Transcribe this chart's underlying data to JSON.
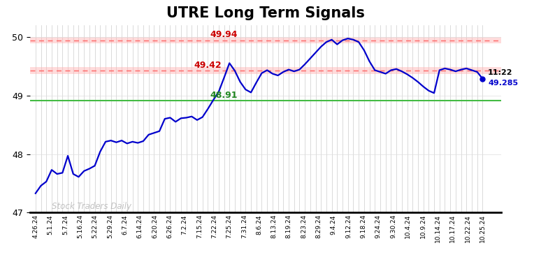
{
  "title": "UTRE Long Term Signals",
  "title_fontsize": 15,
  "title_fontweight": "bold",
  "ylim": [
    47.0,
    50.2
  ],
  "yticks": [
    47,
    48,
    49,
    50
  ],
  "background_color": "#ffffff",
  "plot_bg_color": "#ffffff",
  "line_color": "#0000cc",
  "line_width": 1.6,
  "hline_red1": 49.94,
  "hline_red2": 49.42,
  "hline_green": 48.91,
  "pink_band1_lo": 49.89,
  "pink_band1_hi": 49.995,
  "pink_band2_lo": 49.36,
  "pink_band2_hi": 49.48,
  "annotation_49_94": "49.94",
  "annotation_49_42": "49.42",
  "annotation_48_91": "48.91",
  "annotation_time": "11:22",
  "annotation_price": "49.285",
  "watermark": "Stock Traders Daily",
  "x_labels": [
    "4.26.24",
    "5.1.24",
    "5.7.24",
    "5.16.24",
    "5.22.24",
    "5.29.24",
    "6.7.24",
    "6.14.24",
    "6.20.24",
    "6.26.24",
    "7.2.24",
    "7.15.24",
    "7.22.24",
    "7.25.24",
    "7.31.24",
    "8.6.24",
    "8.13.24",
    "8.19.24",
    "8.23.24",
    "8.29.24",
    "9.4.24",
    "9.12.24",
    "9.18.24",
    "9.24.24",
    "9.30.24",
    "10.4.24",
    "10.9.24",
    "10.14.24",
    "10.17.24",
    "10.22.24",
    "10.25.24"
  ],
  "price_data": [
    [
      0,
      47.33
    ],
    [
      1,
      47.46
    ],
    [
      2,
      47.53
    ],
    [
      3,
      47.73
    ],
    [
      4,
      47.66
    ],
    [
      5,
      47.68
    ],
    [
      6,
      47.97
    ],
    [
      7,
      47.66
    ],
    [
      8,
      47.61
    ],
    [
      9,
      47.71
    ],
    [
      10,
      47.75
    ],
    [
      11,
      47.8
    ],
    [
      12,
      48.04
    ],
    [
      13,
      48.21
    ],
    [
      14,
      48.23
    ],
    [
      15,
      48.2
    ],
    [
      16,
      48.23
    ],
    [
      17,
      48.18
    ],
    [
      18,
      48.21
    ],
    [
      19,
      48.19
    ],
    [
      20,
      48.22
    ],
    [
      21,
      48.33
    ],
    [
      22,
      48.36
    ],
    [
      23,
      48.39
    ],
    [
      24,
      48.6
    ],
    [
      25,
      48.62
    ],
    [
      26,
      48.55
    ],
    [
      27,
      48.61
    ],
    [
      28,
      48.62
    ],
    [
      29,
      48.64
    ],
    [
      30,
      48.58
    ],
    [
      31,
      48.63
    ],
    [
      32,
      48.77
    ],
    [
      33,
      48.92
    ],
    [
      34,
      49.06
    ],
    [
      35,
      49.3
    ],
    [
      36,
      49.55
    ],
    [
      37,
      49.42
    ],
    [
      38,
      49.23
    ],
    [
      39,
      49.1
    ],
    [
      40,
      49.05
    ],
    [
      41,
      49.22
    ],
    [
      42,
      49.38
    ],
    [
      43,
      49.43
    ],
    [
      44,
      49.37
    ],
    [
      45,
      49.34
    ],
    [
      46,
      49.4
    ],
    [
      47,
      49.44
    ],
    [
      48,
      49.41
    ],
    [
      49,
      49.44
    ],
    [
      50,
      49.53
    ],
    [
      51,
      49.63
    ],
    [
      52,
      49.73
    ],
    [
      53,
      49.83
    ],
    [
      54,
      49.91
    ],
    [
      55,
      49.95
    ],
    [
      56,
      49.87
    ],
    [
      57,
      49.94
    ],
    [
      58,
      49.97
    ],
    [
      59,
      49.95
    ],
    [
      60,
      49.91
    ],
    [
      61,
      49.77
    ],
    [
      62,
      49.58
    ],
    [
      63,
      49.43
    ],
    [
      64,
      49.4
    ],
    [
      65,
      49.37
    ],
    [
      66,
      49.43
    ],
    [
      67,
      49.45
    ],
    [
      68,
      49.41
    ],
    [
      69,
      49.36
    ],
    [
      70,
      49.3
    ],
    [
      71,
      49.23
    ],
    [
      72,
      49.15
    ],
    [
      73,
      49.08
    ],
    [
      74,
      49.04
    ],
    [
      75,
      49.43
    ],
    [
      76,
      49.46
    ],
    [
      77,
      49.44
    ],
    [
      78,
      49.41
    ],
    [
      79,
      49.44
    ],
    [
      80,
      49.46
    ],
    [
      81,
      49.43
    ],
    [
      82,
      49.4
    ],
    [
      83,
      49.285
    ]
  ]
}
